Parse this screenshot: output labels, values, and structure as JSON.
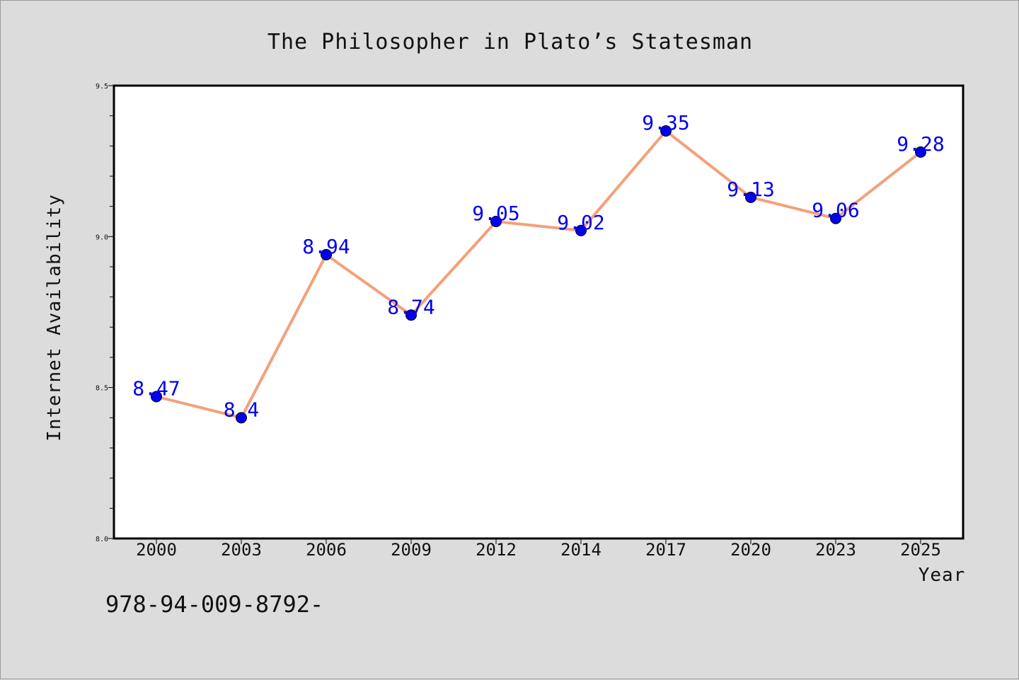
{
  "chart_data": {
    "type": "line",
    "title": "The Philosopher in Plato’s Statesman",
    "xlabel": "Year",
    "ylabel": "Internet Availability",
    "categories": [
      "2000",
      "2003",
      "2006",
      "2009",
      "2012",
      "2014",
      "2017",
      "2020",
      "2023",
      "2025"
    ],
    "series": [
      {
        "values": [
          8.47,
          8.4,
          8.94,
          8.74,
          9.05,
          9.02,
          9.35,
          9.13,
          9.06,
          9.28
        ],
        "labels": [
          "8.47",
          "8.4",
          "8.94",
          "8.74",
          "9.05",
          "9.02",
          "9.35",
          "9.13",
          "9.06",
          "9.28"
        ],
        "line_color": "#f4a07a",
        "marker_color": "#0000ee"
      }
    ],
    "ylim": [
      8.0,
      9.5
    ],
    "yticks": [
      "8.0",
      "8.5",
      "9.0",
      "9.5"
    ],
    "grid": false,
    "legend": "none"
  },
  "footer": {
    "text": "978-94-009-8792-"
  },
  "colors": {
    "background": "#dcdcdc",
    "plot_area": "#ffffff",
    "line": "#f4a07a",
    "marker": "#0000ee",
    "data_label": "#0000ee"
  }
}
